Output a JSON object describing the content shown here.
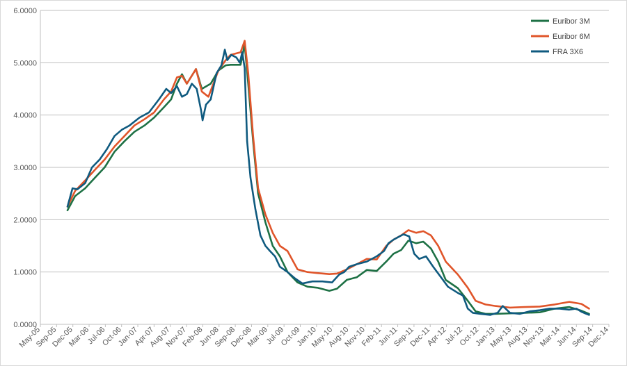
{
  "chart_data": {
    "type": "line",
    "title": "",
    "xlabel": "",
    "ylabel": "",
    "ylim": [
      0,
      6
    ],
    "x_range": [
      "2005-05-01",
      "2014-12-01"
    ],
    "y_ticks": [
      "0.0000",
      "1.0000",
      "2.0000",
      "3.0000",
      "4.0000",
      "5.0000",
      "6.0000"
    ],
    "x_ticks": [
      "May-05",
      "Sep-05",
      "Dec-05",
      "Mar-06",
      "Jul-06",
      "Oct-06",
      "Jan-07",
      "Apr-07",
      "Aug-07",
      "Nov-07",
      "Feb-08",
      "Jun-08",
      "Sep-08",
      "Dec-08",
      "Mar-09",
      "Jul-09",
      "Oct-09",
      "Jan-10",
      "May-10",
      "Aug-10",
      "Nov-10",
      "Feb-11",
      "Jun-11",
      "Sep-11",
      "Dec-11",
      "Apr-12",
      "Jul-12",
      "Oct-12",
      "Jan-13",
      "May-13",
      "Aug-13",
      "Nov-13",
      "Mar-14",
      "Jun-14",
      "Sep-14",
      "Dec-14"
    ],
    "grid": "horizontal",
    "legend_position": "top-right",
    "series": [
      {
        "name": "Euribor 3M",
        "color": "#1e7145",
        "points": [
          [
            "2005-10-15",
            2.18
          ],
          [
            "2005-12-01",
            2.45
          ],
          [
            "2006-02-01",
            2.6
          ],
          [
            "2006-04-01",
            2.8
          ],
          [
            "2006-06-01",
            3.0
          ],
          [
            "2006-08-01",
            3.3
          ],
          [
            "2006-10-01",
            3.5
          ],
          [
            "2006-12-01",
            3.68
          ],
          [
            "2007-02-01",
            3.8
          ],
          [
            "2007-04-01",
            3.95
          ],
          [
            "2007-06-01",
            4.15
          ],
          [
            "2007-07-15",
            4.3
          ],
          [
            "2007-08-20",
            4.6
          ],
          [
            "2007-09-20",
            4.78
          ],
          [
            "2007-10-20",
            4.6
          ],
          [
            "2007-12-15",
            4.88
          ],
          [
            "2008-01-20",
            4.5
          ],
          [
            "2008-03-15",
            4.6
          ],
          [
            "2008-05-01",
            4.85
          ],
          [
            "2008-06-15",
            4.95
          ],
          [
            "2008-07-15",
            4.96
          ],
          [
            "2008-09-15",
            4.96
          ],
          [
            "2008-10-10",
            5.35
          ],
          [
            "2008-11-01",
            4.6
          ],
          [
            "2008-12-01",
            3.5
          ],
          [
            "2009-01-01",
            2.5
          ],
          [
            "2009-02-15",
            1.95
          ],
          [
            "2009-04-01",
            1.5
          ],
          [
            "2009-05-15",
            1.3
          ],
          [
            "2009-07-01",
            1.0
          ],
          [
            "2009-09-01",
            0.8
          ],
          [
            "2009-11-01",
            0.72
          ],
          [
            "2010-01-01",
            0.7
          ],
          [
            "2010-03-15",
            0.64
          ],
          [
            "2010-05-01",
            0.68
          ],
          [
            "2010-07-01",
            0.85
          ],
          [
            "2010-09-01",
            0.9
          ],
          [
            "2010-11-01",
            1.04
          ],
          [
            "2011-01-01",
            1.02
          ],
          [
            "2011-03-01",
            1.2
          ],
          [
            "2011-04-15",
            1.35
          ],
          [
            "2011-06-01",
            1.42
          ],
          [
            "2011-07-15",
            1.6
          ],
          [
            "2011-09-01",
            1.55
          ],
          [
            "2011-10-15",
            1.58
          ],
          [
            "2011-12-01",
            1.45
          ],
          [
            "2012-01-15",
            1.2
          ],
          [
            "2012-03-01",
            0.85
          ],
          [
            "2012-05-15",
            0.69
          ],
          [
            "2012-07-15",
            0.45
          ],
          [
            "2012-09-01",
            0.25
          ],
          [
            "2012-11-01",
            0.2
          ],
          [
            "2013-01-01",
            0.2
          ],
          [
            "2013-04-01",
            0.21
          ],
          [
            "2013-07-01",
            0.22
          ],
          [
            "2013-10-01",
            0.23
          ],
          [
            "2014-01-01",
            0.3
          ],
          [
            "2014-04-01",
            0.33
          ],
          [
            "2014-06-15",
            0.26
          ],
          [
            "2014-08-01",
            0.2
          ]
        ]
      },
      {
        "name": "Euribor 6M",
        "color": "#e0552a",
        "points": [
          [
            "2005-10-15",
            2.25
          ],
          [
            "2005-12-01",
            2.55
          ],
          [
            "2006-02-01",
            2.75
          ],
          [
            "2006-04-01",
            2.95
          ],
          [
            "2006-06-01",
            3.15
          ],
          [
            "2006-08-01",
            3.4
          ],
          [
            "2006-10-01",
            3.6
          ],
          [
            "2006-12-01",
            3.8
          ],
          [
            "2007-02-01",
            3.92
          ],
          [
            "2007-04-01",
            4.05
          ],
          [
            "2007-06-01",
            4.3
          ],
          [
            "2007-07-15",
            4.45
          ],
          [
            "2007-08-20",
            4.72
          ],
          [
            "2007-09-20",
            4.75
          ],
          [
            "2007-10-20",
            4.6
          ],
          [
            "2007-12-15",
            4.88
          ],
          [
            "2008-01-20",
            4.45
          ],
          [
            "2008-03-01",
            4.35
          ],
          [
            "2008-05-01",
            4.85
          ],
          [
            "2008-06-15",
            5.05
          ],
          [
            "2008-07-15",
            5.15
          ],
          [
            "2008-09-15",
            5.2
          ],
          [
            "2008-10-10",
            5.42
          ],
          [
            "2008-11-01",
            4.8
          ],
          [
            "2008-12-01",
            3.6
          ],
          [
            "2009-01-01",
            2.6
          ],
          [
            "2009-02-15",
            2.1
          ],
          [
            "2009-04-01",
            1.75
          ],
          [
            "2009-05-15",
            1.5
          ],
          [
            "2009-07-01",
            1.4
          ],
          [
            "2009-09-01",
            1.05
          ],
          [
            "2009-11-01",
            1.0
          ],
          [
            "2010-01-01",
            0.98
          ],
          [
            "2010-03-15",
            0.96
          ],
          [
            "2010-05-01",
            0.97
          ],
          [
            "2010-07-01",
            1.05
          ],
          [
            "2010-09-01",
            1.15
          ],
          [
            "2010-11-01",
            1.25
          ],
          [
            "2011-01-01",
            1.24
          ],
          [
            "2011-03-01",
            1.5
          ],
          [
            "2011-04-15",
            1.62
          ],
          [
            "2011-06-01",
            1.7
          ],
          [
            "2011-07-15",
            1.8
          ],
          [
            "2011-09-01",
            1.75
          ],
          [
            "2011-10-15",
            1.78
          ],
          [
            "2011-12-01",
            1.7
          ],
          [
            "2012-01-15",
            1.5
          ],
          [
            "2012-03-01",
            1.2
          ],
          [
            "2012-05-15",
            0.95
          ],
          [
            "2012-07-15",
            0.7
          ],
          [
            "2012-09-01",
            0.45
          ],
          [
            "2012-11-01",
            0.38
          ],
          [
            "2013-01-01",
            0.35
          ],
          [
            "2013-04-01",
            0.32
          ],
          [
            "2013-07-01",
            0.33
          ],
          [
            "2013-10-01",
            0.34
          ],
          [
            "2014-01-01",
            0.38
          ],
          [
            "2014-04-01",
            0.43
          ],
          [
            "2014-06-15",
            0.39
          ],
          [
            "2014-08-01",
            0.3
          ]
        ]
      },
      {
        "name": "FRA 3X6",
        "color": "#0f5a7f",
        "points": [
          [
            "2005-10-15",
            2.25
          ],
          [
            "2005-11-15",
            2.6
          ],
          [
            "2005-12-15",
            2.58
          ],
          [
            "2006-02-01",
            2.7
          ],
          [
            "2006-03-15",
            3.0
          ],
          [
            "2006-05-01",
            3.15
          ],
          [
            "2006-06-15",
            3.35
          ],
          [
            "2006-08-01",
            3.6
          ],
          [
            "2006-09-15",
            3.72
          ],
          [
            "2006-11-01",
            3.8
          ],
          [
            "2007-01-01",
            3.95
          ],
          [
            "2007-03-01",
            4.05
          ],
          [
            "2007-05-01",
            4.3
          ],
          [
            "2007-06-15",
            4.5
          ],
          [
            "2007-07-15",
            4.42
          ],
          [
            "2007-08-20",
            4.55
          ],
          [
            "2007-09-20",
            4.35
          ],
          [
            "2007-10-20",
            4.4
          ],
          [
            "2007-11-20",
            4.6
          ],
          [
            "2007-12-20",
            4.5
          ],
          [
            "2008-01-15",
            4.1
          ],
          [
            "2008-01-25",
            3.9
          ],
          [
            "2008-02-15",
            4.2
          ],
          [
            "2008-03-15",
            4.3
          ],
          [
            "2008-04-20",
            4.8
          ],
          [
            "2008-05-20",
            4.95
          ],
          [
            "2008-06-10",
            5.25
          ],
          [
            "2008-06-25",
            5.05
          ],
          [
            "2008-07-20",
            5.15
          ],
          [
            "2008-08-20",
            5.1
          ],
          [
            "2008-09-10",
            5.0
          ],
          [
            "2008-09-25",
            5.2
          ],
          [
            "2008-10-10",
            4.9
          ],
          [
            "2008-10-25",
            3.5
          ],
          [
            "2008-11-15",
            2.8
          ],
          [
            "2008-12-15",
            2.2
          ],
          [
            "2009-01-15",
            1.7
          ],
          [
            "2009-02-15",
            1.5
          ],
          [
            "2009-03-15",
            1.4
          ],
          [
            "2009-04-15",
            1.3
          ],
          [
            "2009-05-15",
            1.1
          ],
          [
            "2009-07-01",
            1.0
          ],
          [
            "2009-08-15",
            0.88
          ],
          [
            "2009-10-01",
            0.78
          ],
          [
            "2009-12-01",
            0.82
          ],
          [
            "2010-02-01",
            0.82
          ],
          [
            "2010-04-01",
            0.8
          ],
          [
            "2010-05-15",
            0.95
          ],
          [
            "2010-06-15",
            1.0
          ],
          [
            "2010-07-15",
            1.1
          ],
          [
            "2010-09-01",
            1.15
          ],
          [
            "2010-11-01",
            1.2
          ],
          [
            "2011-01-01",
            1.3
          ],
          [
            "2011-02-15",
            1.4
          ],
          [
            "2011-03-15",
            1.55
          ],
          [
            "2011-04-15",
            1.62
          ],
          [
            "2011-06-15",
            1.72
          ],
          [
            "2011-07-20",
            1.68
          ],
          [
            "2011-08-20",
            1.35
          ],
          [
            "2011-09-20",
            1.25
          ],
          [
            "2011-11-01",
            1.3
          ],
          [
            "2011-12-15",
            1.1
          ],
          [
            "2012-02-01",
            0.9
          ],
          [
            "2012-03-15",
            0.72
          ],
          [
            "2012-05-15",
            0.6
          ],
          [
            "2012-06-15",
            0.55
          ],
          [
            "2012-07-15",
            0.3
          ],
          [
            "2012-08-15",
            0.22
          ],
          [
            "2012-10-01",
            0.2
          ],
          [
            "2012-12-01",
            0.18
          ],
          [
            "2013-01-15",
            0.22
          ],
          [
            "2013-02-15",
            0.35
          ],
          [
            "2013-04-01",
            0.22
          ],
          [
            "2013-06-01",
            0.2
          ],
          [
            "2013-08-01",
            0.25
          ],
          [
            "2013-10-01",
            0.27
          ],
          [
            "2013-12-01",
            0.3
          ],
          [
            "2014-02-01",
            0.3
          ],
          [
            "2014-04-01",
            0.28
          ],
          [
            "2014-05-15",
            0.3
          ],
          [
            "2014-06-15",
            0.24
          ],
          [
            "2014-07-15",
            0.2
          ],
          [
            "2014-08-01",
            0.18
          ]
        ]
      }
    ]
  }
}
